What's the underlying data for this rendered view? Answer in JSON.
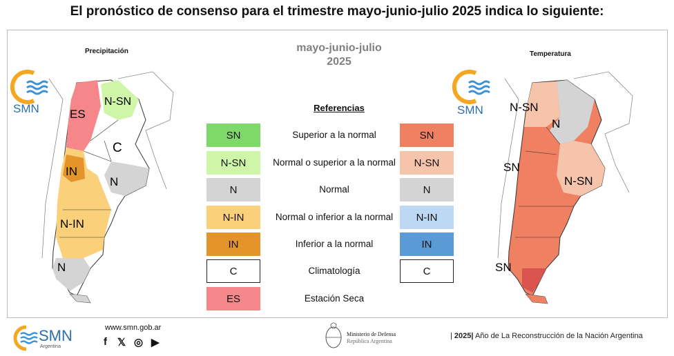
{
  "title": "El pronóstico de consenso para el trimestre mayo-junio-julio 2025 indica lo siguiente:",
  "period": {
    "line1": "mayo-junio-julio",
    "line2": "2025"
  },
  "precip_map": {
    "label": "Precipitación",
    "regions": [
      "ES",
      "N-SN",
      "C",
      "IN",
      "N",
      "N-IN",
      "N"
    ]
  },
  "temp_map": {
    "label": "Temperatura",
    "regions": [
      "N-SN",
      "N",
      "SN",
      "N-SN",
      "SN"
    ]
  },
  "logo": {
    "text": "SMN",
    "footer_text": "SMN",
    "footer_sub": "Argentina"
  },
  "references": {
    "title": "Referencias",
    "precip_items": [
      {
        "code": "SN",
        "color": "#7ed96a"
      },
      {
        "code": "N-SN",
        "color": "#cff5a8"
      },
      {
        "code": "N",
        "color": "#d4d4d4"
      },
      {
        "code": "N-IN",
        "color": "#fbd07a"
      },
      {
        "code": "IN",
        "color": "#e3952b"
      },
      {
        "code": "C",
        "color": "#ffffff"
      },
      {
        "code": "ES",
        "color": "#f5868a"
      }
    ],
    "descriptions": [
      "Superior a la normal",
      "Normal o superior a la normal",
      "Normal",
      "Normal o inferior a la normal",
      "Inferior a la normal",
      "Climatología",
      "Estación Seca"
    ],
    "temp_items": [
      {
        "code": "SN",
        "color": "#ef8061"
      },
      {
        "code": "N-SN",
        "color": "#f6c3ab"
      },
      {
        "code": "N",
        "color": "#d4d4d4"
      },
      {
        "code": "N-IN",
        "color": "#bcd8f2"
      },
      {
        "code": "IN",
        "color": "#5b9bd5"
      },
      {
        "code": "C",
        "color": "#ffffff"
      }
    ]
  },
  "footer": {
    "url": "www.smn.gob.ar",
    "social": [
      "f",
      "𝕏",
      "◎",
      "▶"
    ],
    "ministry_line1": "Ministerio de Defensa",
    "ministry_line2": "República Argentina",
    "year_prefix": "|",
    "year": "2025|",
    "year_motto": "Año de La Reconstrucción de la Nación Argentina"
  }
}
